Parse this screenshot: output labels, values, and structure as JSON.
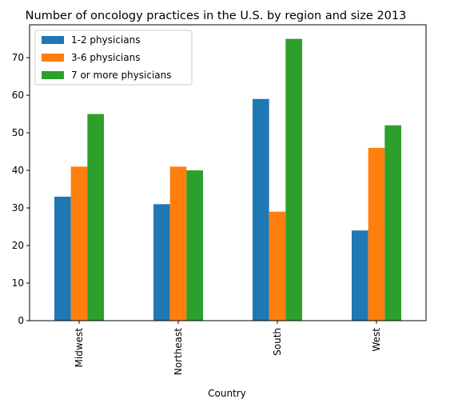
{
  "chart_data": {
    "type": "bar",
    "title": "Number of oncology practices in the U.S. by region and size 2013",
    "xlabel": "Country",
    "ylabel": "",
    "categories": [
      "Midwest",
      "Northeast",
      "South",
      "West"
    ],
    "series": [
      {
        "name": "1-2 physicians",
        "values": [
          33,
          31,
          59,
          24
        ],
        "color": "#1f77b4"
      },
      {
        "name": "3-6 physicians",
        "values": [
          41,
          41,
          29,
          46
        ],
        "color": "#ff7f0e"
      },
      {
        "name": "7 or more physicians",
        "values": [
          55,
          40,
          75,
          52
        ],
        "color": "#2ca02c"
      }
    ],
    "ylim": [
      0,
      78.75
    ],
    "yticks": [
      0,
      10,
      20,
      30,
      40,
      50,
      60,
      70
    ],
    "grid": false,
    "legend_position": "top-left"
  }
}
